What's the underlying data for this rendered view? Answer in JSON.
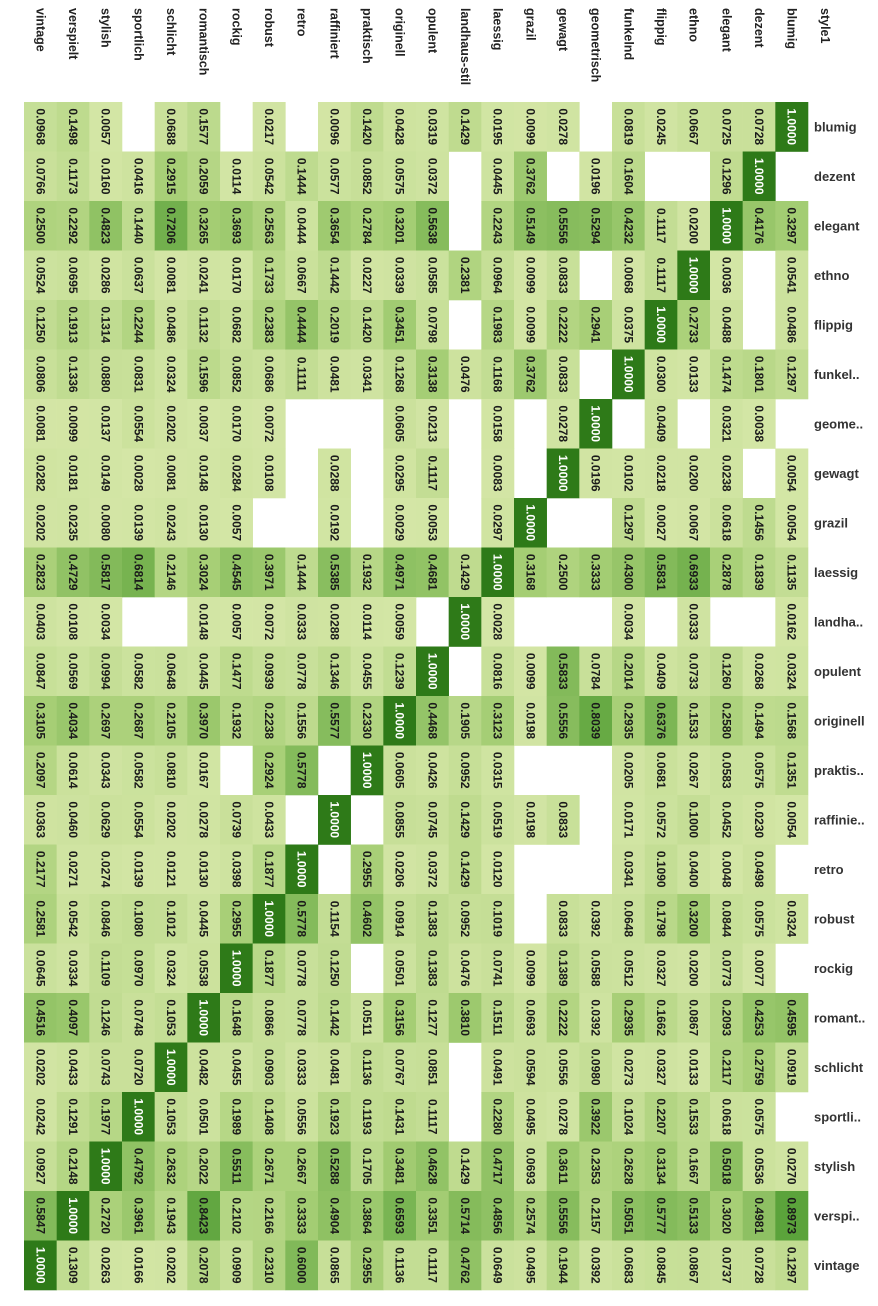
{
  "chart_data": {
    "type": "heatmap",
    "corner_label": "style1",
    "rows": [
      "vintage",
      "verspielt",
      "stylish",
      "sportlich",
      "schlicht",
      "romantisch",
      "rockig",
      "robust",
      "retro",
      "raffiniert",
      "praktisch",
      "originell",
      "opulent",
      "landhaus-stil",
      "laessig",
      "grazil",
      "gewagt",
      "geometrisch",
      "funkelnd",
      "flippig",
      "ethno",
      "elegant",
      "dezent",
      "blumig"
    ],
    "columns": [
      "blumig",
      "dezent",
      "elegant",
      "ethno",
      "flippig",
      "funkel..",
      "geome..",
      "gewagt",
      "grazil",
      "laessig",
      "landha..",
      "opulent",
      "originell",
      "praktis..",
      "raffinie..",
      "retro",
      "robust",
      "rockig",
      "romant..",
      "schlicht",
      "sportli..",
      "stylish",
      "verspi..",
      "vintage"
    ],
    "colors": {
      "low": "#d4e6a6",
      "mid": "#a7cf76",
      "high": "#5ba33b",
      "max": "#2e7a18",
      "empty": "#ffffff"
    },
    "values": [
      [
        0.0968,
        0.0766,
        0.25,
        0.0524,
        0.125,
        0.0806,
        0.0081,
        0.0282,
        0.0202,
        0.2823,
        0.0403,
        0.0847,
        0.3105,
        0.2097,
        0.0363,
        0.2177,
        0.2581,
        0.0645,
        0.4516,
        0.0202,
        0.0242,
        0.0927,
        0.5847,
        1.0
      ],
      [
        0.1498,
        0.1173,
        0.2292,
        0.0695,
        0.1913,
        0.1336,
        0.0099,
        0.0181,
        0.0235,
        0.4729,
        0.0108,
        0.0569,
        0.4034,
        0.0614,
        0.046,
        0.0271,
        0.0542,
        0.0334,
        0.4097,
        0.0433,
        0.1291,
        0.2148,
        1.0,
        0.1309
      ],
      [
        0.0057,
        0.016,
        0.4823,
        0.0286,
        0.1314,
        0.088,
        0.0137,
        0.0149,
        0.008,
        0.5817,
        0.0034,
        0.0994,
        0.2697,
        0.0343,
        0.0629,
        0.0274,
        0.0846,
        0.1109,
        0.1246,
        0.0743,
        0.1977,
        1.0,
        0.272,
        0.0263
      ],
      [
        null,
        0.0416,
        0.144,
        0.0637,
        0.2244,
        0.0831,
        0.0554,
        0.0028,
        0.0139,
        0.6814,
        null,
        0.0582,
        0.2687,
        0.0582,
        0.0554,
        0.0139,
        0.108,
        0.097,
        0.0748,
        0.072,
        1.0,
        0.4792,
        0.3961,
        0.0166
      ],
      [
        0.0688,
        0.2915,
        0.7206,
        0.0081,
        0.0486,
        0.0324,
        0.0202,
        0.0081,
        0.0243,
        0.2146,
        null,
        0.0648,
        0.2105,
        0.081,
        0.0202,
        0.0121,
        0.1012,
        0.0324,
        0.1053,
        1.0,
        0.1053,
        0.2632,
        0.1943,
        0.0202
      ],
      [
        0.1577,
        0.2059,
        0.3265,
        0.0241,
        0.1132,
        0.1596,
        0.0037,
        0.0148,
        0.013,
        0.3024,
        0.0148,
        0.0445,
        0.397,
        0.0167,
        0.0278,
        0.013,
        0.0445,
        0.0538,
        1.0,
        0.0482,
        0.0501,
        0.2022,
        0.8423,
        0.2078
      ],
      [
        null,
        0.0114,
        0.3693,
        0.017,
        0.0682,
        0.0852,
        0.017,
        0.0284,
        0.0057,
        0.4545,
        0.0057,
        0.1477,
        0.1932,
        null,
        0.0739,
        0.0398,
        0.2955,
        1.0,
        0.1648,
        0.0455,
        0.1989,
        0.5511,
        0.2102,
        0.0909
      ],
      [
        0.0217,
        0.0542,
        0.2563,
        0.1733,
        0.2383,
        0.0686,
        0.0072,
        0.0108,
        null,
        0.3971,
        0.0072,
        0.0939,
        0.2238,
        0.2924,
        0.0433,
        0.1877,
        1.0,
        0.1877,
        0.0866,
        0.0903,
        0.1408,
        0.2671,
        0.2166,
        0.231
      ],
      [
        null,
        0.1444,
        0.0444,
        0.0667,
        0.4444,
        0.1111,
        null,
        null,
        null,
        0.1444,
        0.0333,
        0.0778,
        0.1556,
        0.5778,
        null,
        1.0,
        0.5778,
        0.0778,
        0.0778,
        0.0333,
        0.0556,
        0.2667,
        0.3333,
        0.6
      ],
      [
        0.0096,
        0.0577,
        0.3654,
        0.1442,
        0.2019,
        0.0481,
        null,
        0.0288,
        0.0192,
        0.5385,
        0.0288,
        0.1346,
        0.5577,
        null,
        1.0,
        null,
        0.1154,
        0.125,
        0.1442,
        0.0481,
        0.1923,
        0.5288,
        0.4904,
        0.0865
      ],
      [
        0.142,
        0.0852,
        0.2784,
        0.0227,
        0.142,
        0.0341,
        null,
        null,
        null,
        0.1932,
        0.0114,
        0.0455,
        0.233,
        1.0,
        null,
        0.2955,
        0.4602,
        null,
        0.0511,
        0.1136,
        0.1193,
        0.1705,
        0.3864,
        0.2955
      ],
      [
        0.0428,
        0.0575,
        0.3201,
        0.0339,
        0.3451,
        0.1268,
        0.0605,
        0.0295,
        0.0029,
        0.4971,
        0.0059,
        0.1239,
        1.0,
        0.0605,
        0.0855,
        0.0206,
        0.0914,
        0.0501,
        0.3156,
        0.0767,
        0.1431,
        0.3481,
        0.6593,
        0.1136
      ],
      [
        0.0319,
        0.0372,
        0.5638,
        0.0585,
        0.0798,
        0.3138,
        0.0213,
        0.1117,
        0.0053,
        0.4681,
        null,
        1.0,
        0.4468,
        0.0426,
        0.0745,
        0.0372,
        0.1383,
        0.1383,
        0.1277,
        0.0851,
        0.1117,
        0.4628,
        0.3351,
        0.1117
      ],
      [
        0.1429,
        null,
        null,
        0.2381,
        null,
        0.0476,
        null,
        null,
        null,
        0.1429,
        1.0,
        null,
        0.1905,
        0.0952,
        0.1429,
        0.1429,
        0.0952,
        0.0476,
        0.381,
        null,
        null,
        0.1429,
        0.5714,
        0.4762
      ],
      [
        0.0195,
        0.0445,
        0.2243,
        0.0964,
        0.1983,
        0.1168,
        0.0158,
        0.0083,
        0.0297,
        1.0,
        0.0028,
        0.0816,
        0.3123,
        0.0315,
        0.0519,
        0.012,
        0.1019,
        0.0741,
        0.1511,
        0.0491,
        0.228,
        0.4717,
        0.4856,
        0.0649
      ],
      [
        0.0099,
        0.3762,
        0.5149,
        0.0099,
        0.0099,
        0.3762,
        null,
        null,
        1.0,
        0.3168,
        null,
        0.0099,
        0.0198,
        null,
        0.0198,
        null,
        null,
        0.0099,
        0.0693,
        0.0594,
        0.0495,
        0.0693,
        0.2574,
        0.0495
      ],
      [
        0.0278,
        null,
        0.5556,
        0.0833,
        0.2222,
        0.0833,
        0.0278,
        1.0,
        null,
        0.25,
        null,
        0.5833,
        0.5556,
        null,
        0.0833,
        null,
        0.0833,
        0.1389,
        0.2222,
        0.0556,
        0.0278,
        0.3611,
        0.5556,
        0.1944
      ],
      [
        null,
        0.0196,
        0.5294,
        null,
        0.2941,
        null,
        1.0,
        0.0196,
        null,
        0.3333,
        null,
        0.0784,
        0.8039,
        null,
        null,
        null,
        0.0392,
        0.0588,
        0.0392,
        0.098,
        0.3922,
        0.2353,
        0.2157,
        0.0392
      ],
      [
        0.0819,
        0.1604,
        0.4232,
        0.0068,
        0.0375,
        1.0,
        null,
        0.0102,
        0.1297,
        0.43,
        0.0034,
        0.2014,
        0.2935,
        0.0205,
        0.0171,
        0.0341,
        0.0648,
        0.0512,
        0.2935,
        0.0273,
        0.1024,
        0.2628,
        0.5051,
        0.0683
      ],
      [
        0.0245,
        null,
        0.1117,
        0.1117,
        1.0,
        0.03,
        0.0409,
        0.0218,
        0.0027,
        0.5831,
        null,
        0.0409,
        0.6376,
        0.0681,
        0.0572,
        0.109,
        0.1798,
        0.0327,
        0.1662,
        0.0327,
        0.2207,
        0.3134,
        0.5777,
        0.0845
      ],
      [
        0.0667,
        null,
        0.02,
        1.0,
        0.2733,
        0.0133,
        null,
        0.02,
        0.0067,
        0.6933,
        0.0333,
        0.0733,
        0.1533,
        0.0267,
        0.1,
        0.04,
        0.32,
        0.02,
        0.0867,
        0.0133,
        0.1533,
        0.1667,
        0.5133,
        0.0867
      ],
      [
        0.0725,
        0.1296,
        1.0,
        0.0036,
        0.0488,
        0.1474,
        0.0321,
        0.0238,
        0.0618,
        0.2878,
        null,
        0.126,
        0.258,
        0.0583,
        0.0452,
        0.0048,
        0.0844,
        0.0773,
        0.2093,
        0.2117,
        0.0618,
        0.5018,
        0.302,
        0.0737
      ],
      [
        0.0728,
        1.0,
        0.4176,
        null,
        null,
        0.1801,
        0.0038,
        null,
        0.1456,
        0.1839,
        null,
        0.0268,
        0.1494,
        0.0575,
        0.023,
        0.0498,
        0.0575,
        0.0077,
        0.4253,
        0.2759,
        0.0575,
        0.0536,
        0.4981,
        0.0728
      ],
      [
        1.0,
        null,
        0.3297,
        0.0541,
        0.0486,
        0.1297,
        null,
        0.0054,
        0.0054,
        0.1135,
        0.0162,
        0.0324,
        0.1568,
        0.1351,
        0.0054,
        null,
        0.0324,
        null,
        0.4595,
        0.0919,
        null,
        0.027,
        0.8973,
        0.1297
      ]
    ]
  }
}
